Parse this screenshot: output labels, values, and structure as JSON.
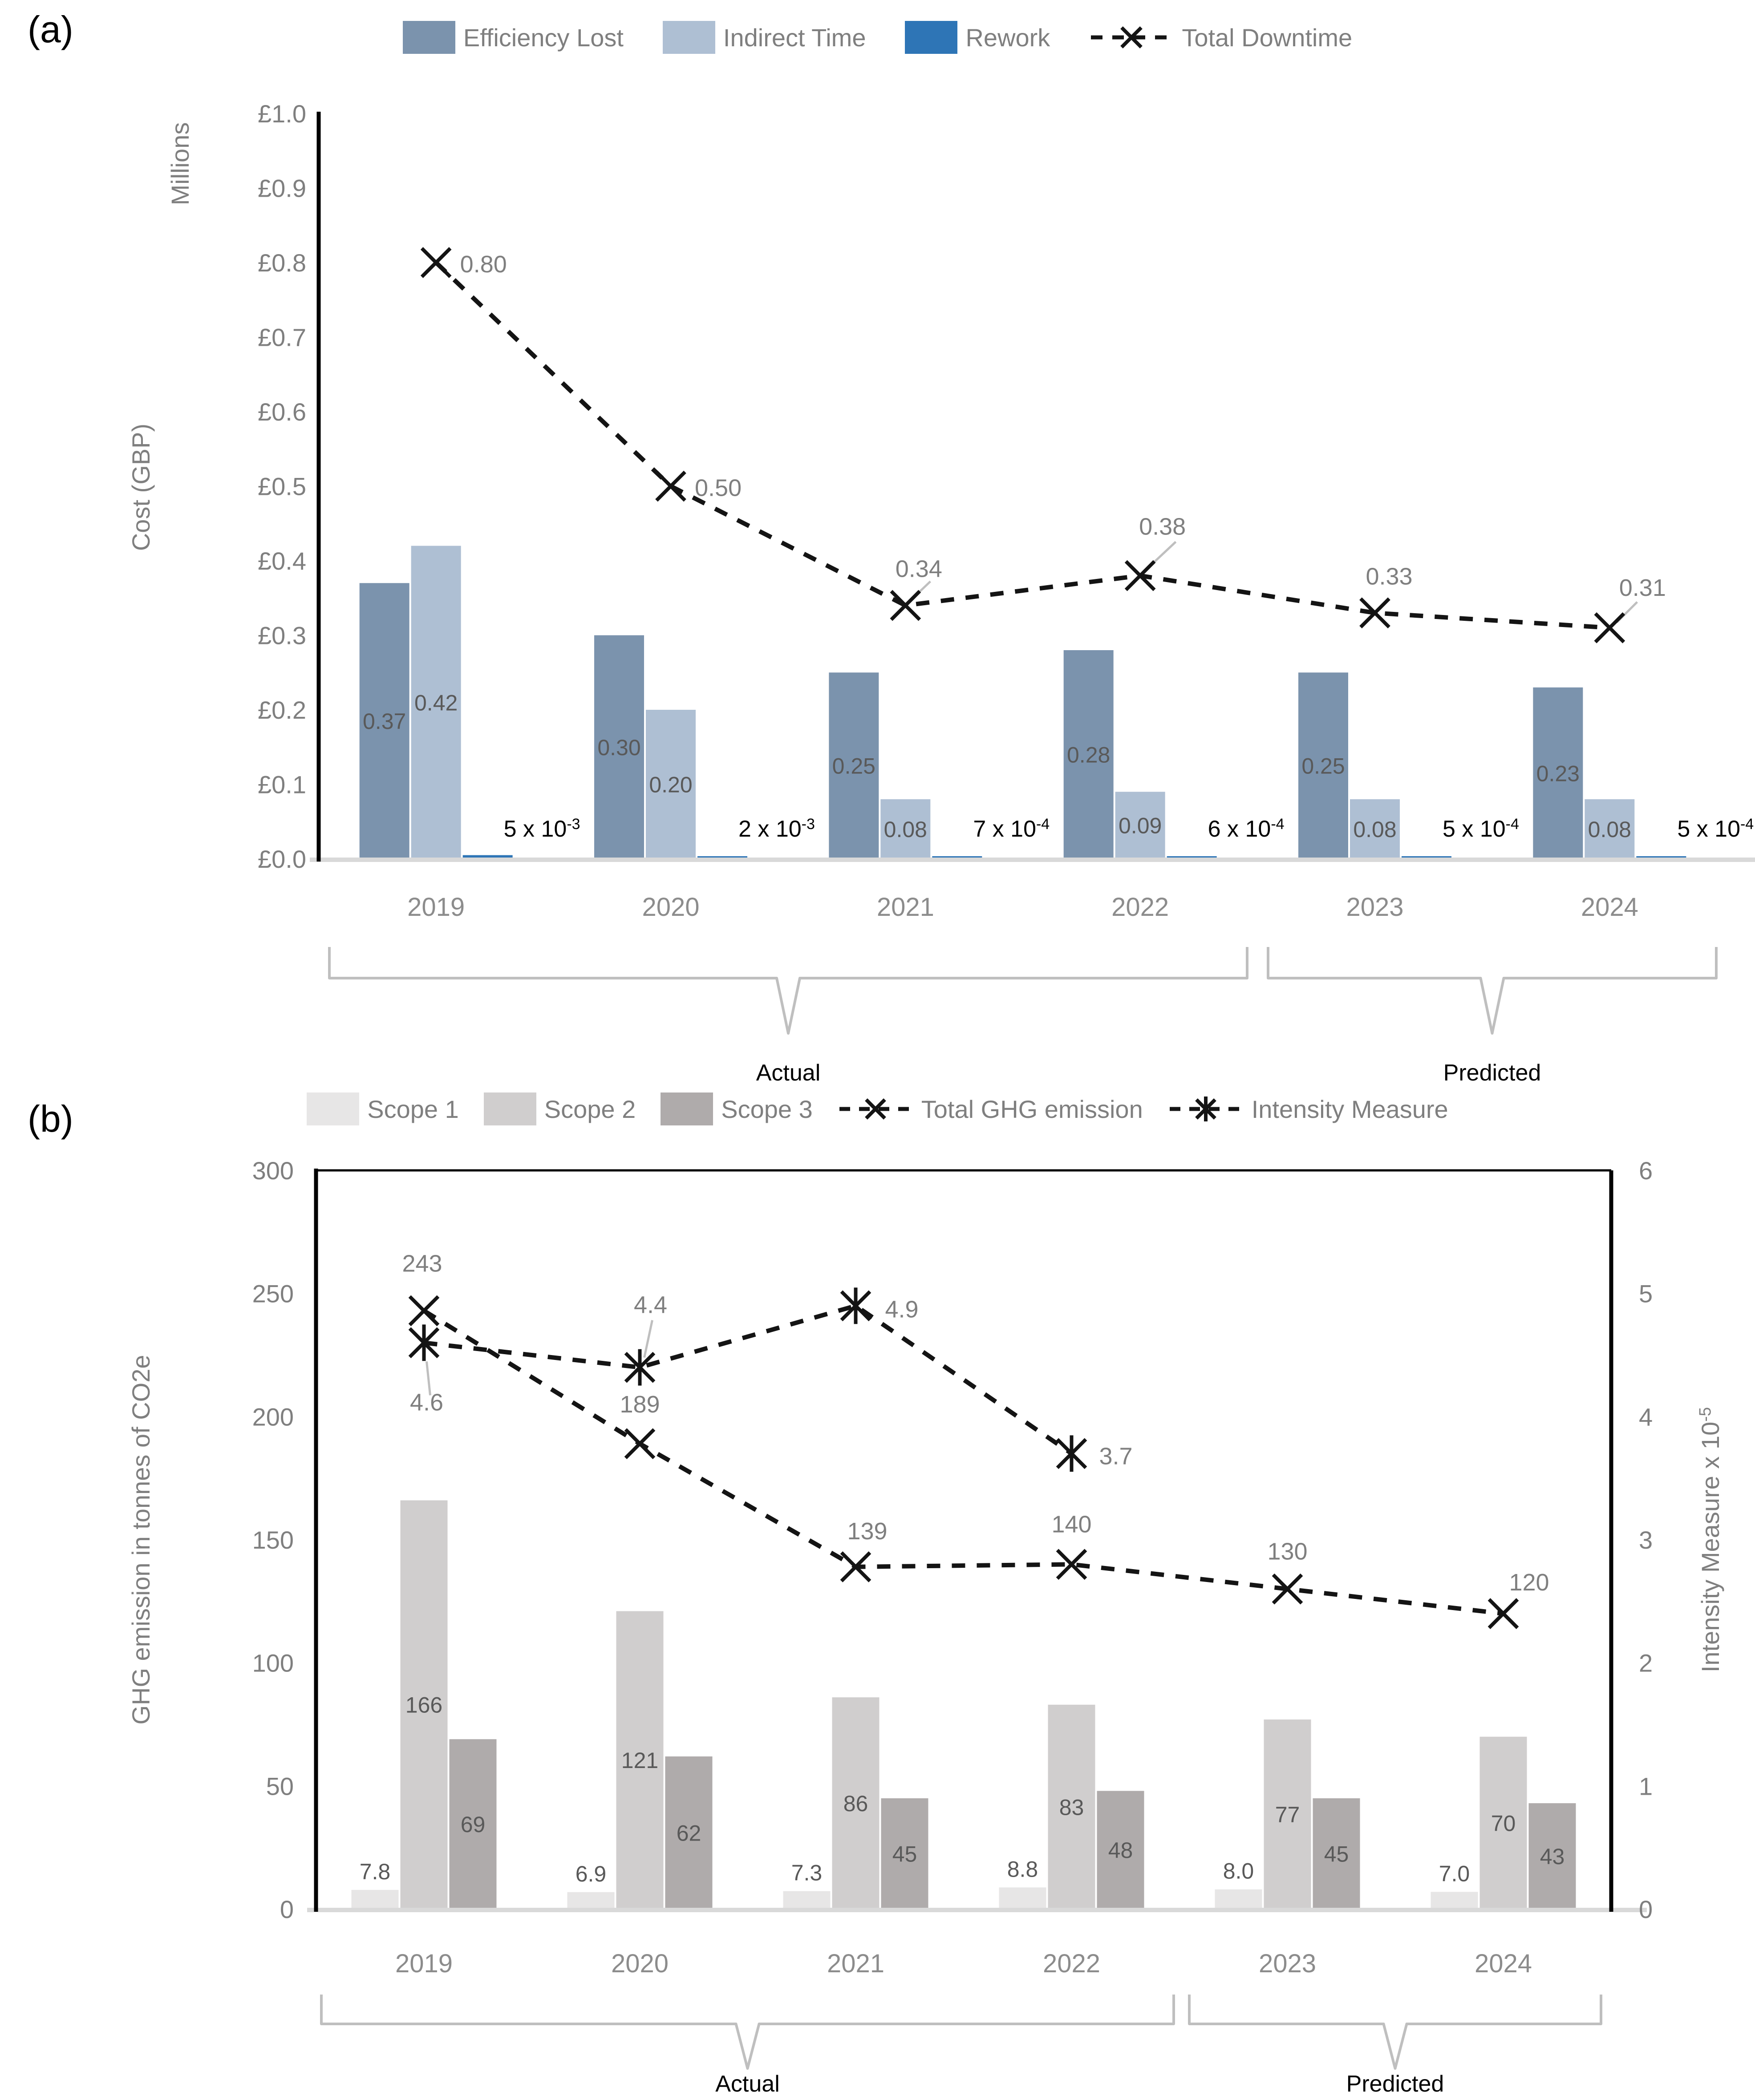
{
  "panel_a": {
    "label": "(a)",
    "y_axis_units": "Millions",
    "y_axis_title": "Cost (GBP)",
    "group_annotations": [
      {
        "label": "Actual",
        "from": "2019",
        "to": "2022"
      },
      {
        "label": "Predicted",
        "from": "2023",
        "to": "2024"
      }
    ]
  },
  "panel_b": {
    "label": "(b)",
    "y_axis_title": "GHG emission in tonnes of CO2e",
    "y2_axis_title": "Intensity Measure x 10^-5",
    "group_annotations": [
      {
        "label": "Actual",
        "from": "2019",
        "to": "2022"
      },
      {
        "label": "Predicted",
        "from": "2023",
        "to": "2024"
      }
    ]
  },
  "chart_data": [
    {
      "type": "bar",
      "subtype": "grouped bars with dashed overlay line",
      "categories": [
        "2019",
        "2020",
        "2021",
        "2022",
        "2023",
        "2024"
      ],
      "ylabel": "Cost (GBP)",
      "y_units": "Millions",
      "ylim": [
        0,
        1.0
      ],
      "yticks": [
        "£0.0",
        "£0.1",
        "£0.2",
        "£0.3",
        "£0.4",
        "£0.5",
        "£0.6",
        "£0.7",
        "£0.8",
        "£0.9",
        "£1.0"
      ],
      "grid": false,
      "legend_position": "top",
      "series": [
        {
          "name": "Efficiency Lost",
          "kind": "bar",
          "color": "#7B93AD",
          "values": [
            0.37,
            0.3,
            0.25,
            0.28,
            0.25,
            0.23
          ],
          "labels": [
            "0.37",
            "0.30",
            "0.25",
            "0.28",
            "0.25",
            "0.23"
          ]
        },
        {
          "name": "Indirect Time",
          "kind": "bar",
          "color": "#AEBFD3",
          "values": [
            0.42,
            0.2,
            0.08,
            0.09,
            0.08,
            0.08
          ],
          "labels": [
            "0.42",
            "0.20",
            "0.08",
            "0.09",
            "0.08",
            "0.08"
          ]
        },
        {
          "name": "Rework",
          "kind": "bar",
          "color": "#2E75B6",
          "values": [
            0.005,
            0.002,
            0.0007,
            0.0006,
            0.0005,
            0.0005
          ],
          "labels": [
            "5 x 10^-3",
            "2 x 10^-3",
            "7 x 10^-4",
            "6 x 10^-4",
            "5 x 10^-4",
            "5 x 10^-4"
          ]
        },
        {
          "name": "Total Downtime",
          "kind": "line",
          "marker": "x",
          "dashed": true,
          "color": "#141414",
          "values": [
            0.8,
            0.5,
            0.34,
            0.38,
            0.33,
            0.31
          ],
          "labels": [
            "0.80",
            "0.50",
            "0.34",
            "0.38",
            "0.33",
            "0.31"
          ]
        }
      ],
      "group_annotations": [
        {
          "label": "Actual",
          "from": "2019",
          "to": "2022"
        },
        {
          "label": "Predicted",
          "from": "2023",
          "to": "2024"
        }
      ]
    },
    {
      "type": "bar",
      "subtype": "grouped bars with two dashed overlay lines, dual y-axis",
      "categories": [
        "2019",
        "2020",
        "2021",
        "2022",
        "2023",
        "2024"
      ],
      "ylabel": "GHG emission in tonnes of CO2e",
      "ylim": [
        0,
        300
      ],
      "yticks": [
        "0",
        "50",
        "100",
        "150",
        "200",
        "250",
        "300"
      ],
      "y2label": "Intensity Measure x 10^-5",
      "y2lim": [
        0,
        6
      ],
      "y2ticks": [
        "0",
        "1",
        "2",
        "3",
        "4",
        "5",
        "6"
      ],
      "grid": false,
      "legend_position": "top",
      "series": [
        {
          "name": "Scope 1",
          "kind": "bar",
          "color": "#E7E6E6",
          "values": [
            7.8,
            6.9,
            7.3,
            8.8,
            8.0,
            7.0
          ],
          "labels": [
            "7.8",
            "6.9",
            "7.3",
            "8.8",
            "8.0",
            "7.0"
          ]
        },
        {
          "name": "Scope 2",
          "kind": "bar",
          "color": "#D0CECE",
          "values": [
            166,
            121,
            86,
            83,
            77,
            70
          ],
          "labels": [
            "166",
            "121",
            "86",
            "83",
            "77",
            "70"
          ]
        },
        {
          "name": "Scope 3",
          "kind": "bar",
          "color": "#AFABAB",
          "values": [
            69,
            62,
            45,
            48,
            45,
            43
          ],
          "labels": [
            "69",
            "62",
            "45",
            "48",
            "45",
            "43"
          ]
        },
        {
          "name": "Total GHG emission",
          "kind": "line",
          "axis": "left",
          "marker": "x",
          "dashed": true,
          "color": "#141414",
          "values": [
            243,
            189,
            139,
            140,
            130,
            120
          ],
          "labels": [
            "243",
            "189",
            "139",
            "140",
            "130",
            "120"
          ]
        },
        {
          "name": "Intensity Measure",
          "kind": "line",
          "axis": "right",
          "marker": "asterisk",
          "dashed": true,
          "color": "#141414",
          "values": [
            4.6,
            4.4,
            4.9,
            3.7,
            null,
            null
          ],
          "labels": [
            "4.6",
            "4.4",
            "4.9",
            "3.7",
            "",
            ""
          ]
        }
      ],
      "group_annotations": [
        {
          "label": "Actual",
          "from": "2019",
          "to": "2022"
        },
        {
          "label": "Predicted",
          "from": "2023",
          "to": "2024"
        }
      ]
    }
  ]
}
